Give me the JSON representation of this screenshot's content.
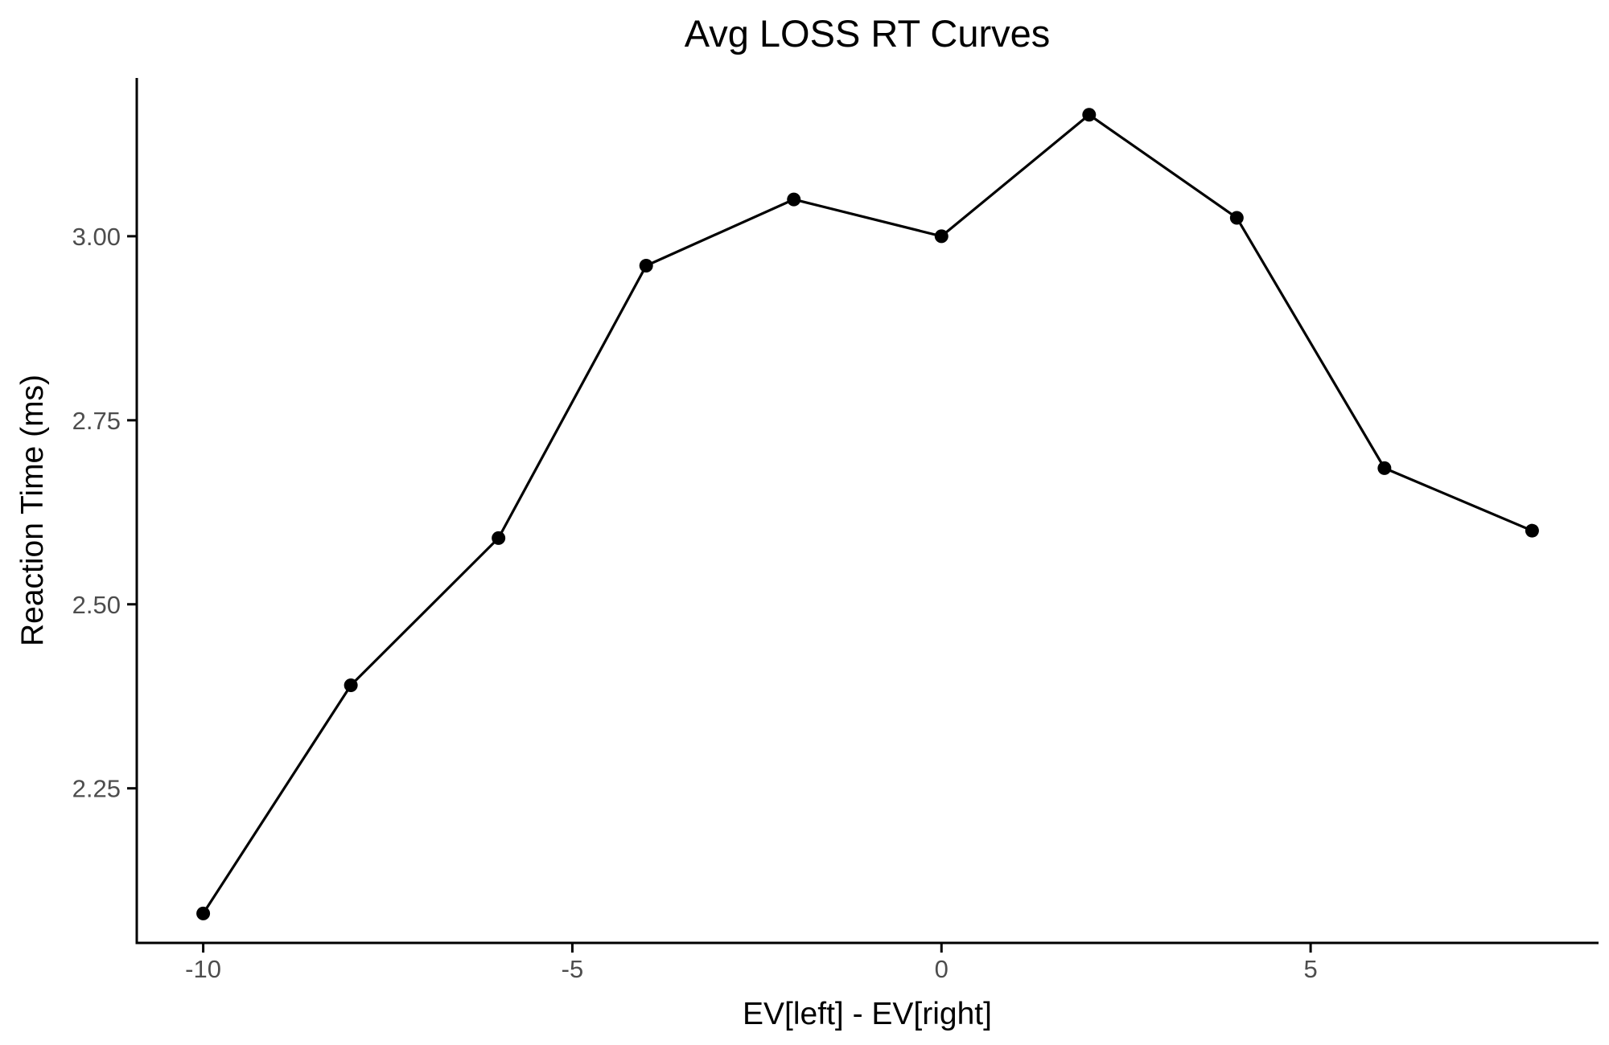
{
  "chart_data": {
    "type": "line",
    "title": "Avg LOSS RT Curves",
    "xlabel": "EV[left] - EV[right]",
    "ylabel": "Reaction Time (ms)",
    "x": [
      -10,
      -8,
      -6,
      -4,
      -2,
      0,
      2,
      4,
      6,
      8
    ],
    "series": [
      {
        "values": [
          2.08,
          2.39,
          2.59,
          2.96,
          3.05,
          3.0,
          3.165,
          3.025,
          2.685,
          2.6
        ]
      }
    ],
    "xticks": [
      -10,
      -5,
      0,
      5
    ],
    "xtick_labels": [
      "-10",
      "-5",
      "0",
      "5"
    ],
    "yticks": [
      2.25,
      2.5,
      2.75,
      3.0
    ],
    "ytick_labels": [
      "2.25",
      "2.50",
      "2.75",
      "3.00"
    ],
    "xlim": [
      -10.9,
      8.9
    ],
    "ylim": [
      2.04,
      3.215
    ],
    "grid": false,
    "legend": "none",
    "line_color": "#000000",
    "point_color": "#000000"
  }
}
